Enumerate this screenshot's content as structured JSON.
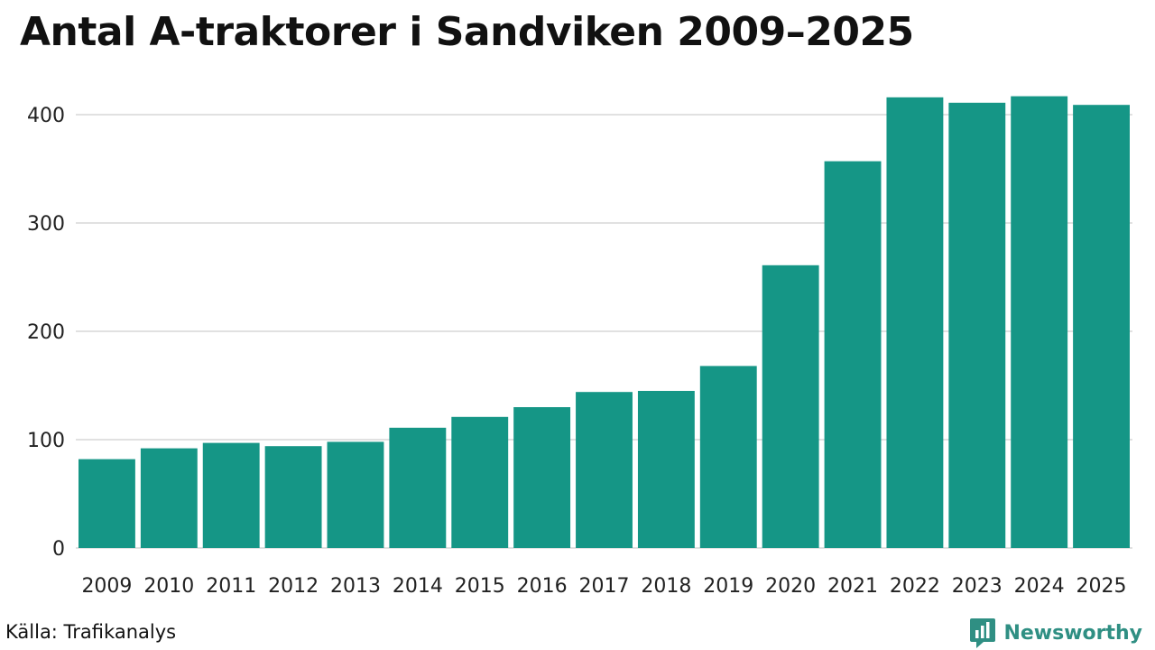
{
  "title": "Antal A-traktorer i Sandviken 2009–2025",
  "source": "Källa: Trafikanalys",
  "brand": {
    "name": "Newsworthy",
    "icon": "newsworthy-logo-icon"
  },
  "colors": {
    "bar": "#159686",
    "grid": "#e1e1e1",
    "brand": "#2f8f83"
  },
  "chart_data": {
    "type": "bar",
    "title": "Antal A-traktorer i Sandviken 2009–2025",
    "xlabel": "",
    "ylabel": "",
    "categories": [
      "2009",
      "2010",
      "2011",
      "2012",
      "2013",
      "2014",
      "2015",
      "2016",
      "2017",
      "2018",
      "2019",
      "2020",
      "2021",
      "2022",
      "2023",
      "2024",
      "2025"
    ],
    "values": [
      82,
      92,
      97,
      94,
      98,
      111,
      121,
      130,
      144,
      145,
      168,
      261,
      357,
      416,
      411,
      417,
      409
    ],
    "ylim": [
      0,
      440
    ],
    "yticks": [
      0,
      100,
      200,
      300,
      400
    ],
    "grid": true,
    "legend": "none"
  }
}
